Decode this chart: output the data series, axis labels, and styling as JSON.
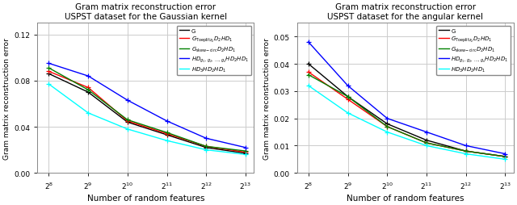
{
  "title1": "Gram matrix reconstruction error\nUSPST dataset for the Gaussian kernel",
  "title2": "Gram matrix reconstruction error\nUSPST dataset for the angular kernel",
  "xlabel": "Number of random features",
  "ylabel": "Gram matrix reconstruction error",
  "x_labels": [
    "$2^8$",
    "$2^9$",
    "$2^{10}$",
    "$2^{11}$",
    "$2^{12}$",
    "$2^{13}$"
  ],
  "x_vals": [
    256,
    512,
    1024,
    2048,
    4096,
    8192
  ],
  "colors": [
    "black",
    "red",
    "green",
    "blue",
    "cyan"
  ],
  "plot1": {
    "ylim": [
      0.0,
      0.13
    ],
    "yticks": [
      0.0,
      0.04,
      0.08,
      0.12
    ],
    "G": [
      0.086,
      0.07,
      0.044,
      0.033,
      0.022,
      0.017
    ],
    "GToeplitz": [
      0.088,
      0.074,
      0.045,
      0.034,
      0.023,
      0.018
    ],
    "Gskew": [
      0.091,
      0.072,
      0.046,
      0.035,
      0.023,
      0.019
    ],
    "HDbig": [
      0.095,
      0.084,
      0.063,
      0.045,
      0.03,
      0.022
    ],
    "HD3": [
      0.077,
      0.052,
      0.038,
      0.028,
      0.02,
      0.016
    ]
  },
  "plot2": {
    "ylim": [
      0.0,
      0.055
    ],
    "yticks": [
      0.0,
      0.01,
      0.02,
      0.03,
      0.04,
      0.05
    ],
    "G": [
      0.04,
      0.028,
      0.018,
      0.012,
      0.008,
      0.006
    ],
    "GToeplitz": [
      0.037,
      0.027,
      0.017,
      0.011,
      0.008,
      0.006
    ],
    "Gskew": [
      0.036,
      0.028,
      0.017,
      0.011,
      0.008,
      0.006
    ],
    "HDbig": [
      0.048,
      0.032,
      0.02,
      0.015,
      0.01,
      0.007
    ],
    "HD3": [
      0.032,
      0.022,
      0.015,
      0.01,
      0.007,
      0.005
    ]
  },
  "bg_color": "#ffffff",
  "grid_color": "#cccccc",
  "lw": 1.0,
  "marker_size": 5
}
